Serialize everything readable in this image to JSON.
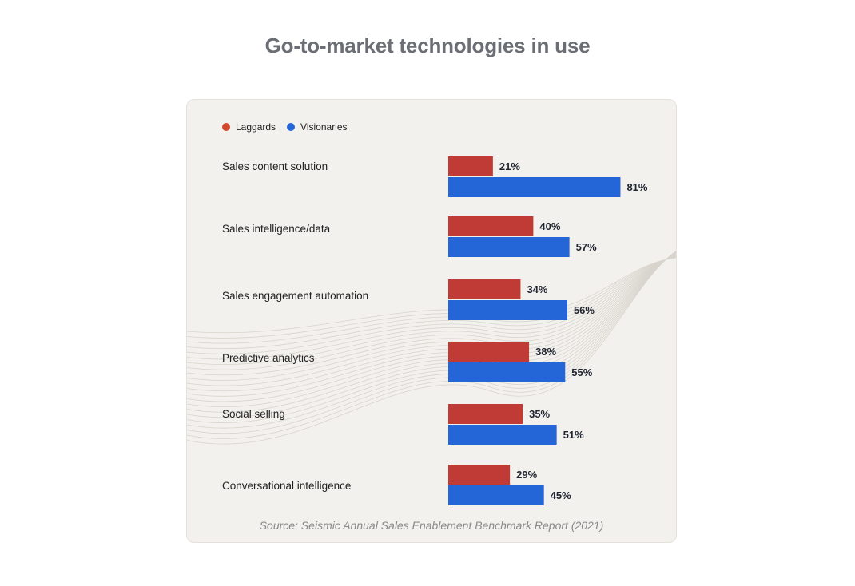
{
  "title": "Go-to-market technologies in use",
  "source": "Source: Seismic Annual Sales Enablement Benchmark Report (2021)",
  "colors": {
    "laggards": "#c03a36",
    "visionaries": "#2466d8",
    "card": "#f3f1ed",
    "title": "#6b6e74"
  },
  "chart_data": {
    "type": "bar",
    "orientation": "horizontal",
    "title": "Go-to-market technologies in use",
    "categories": [
      "Sales content solution",
      "Sales intelligence/data",
      "Sales engagement automation",
      "Predictive analytics",
      "Social selling",
      "Conversational intelligence"
    ],
    "series": [
      {
        "name": "Laggards",
        "color": "#c03a36",
        "values": [
          21,
          40,
          34,
          38,
          35,
          29
        ],
        "labels": [
          "21%",
          "40%",
          "34%",
          "38%",
          "35%",
          "29%"
        ]
      },
      {
        "name": "Visionaries",
        "color": "#2466d8",
        "values": [
          81,
          57,
          56,
          55,
          51,
          45
        ],
        "labels": [
          "81%",
          "57%",
          "56%",
          "55%",
          "51%",
          "45%"
        ]
      }
    ],
    "unit": "%",
    "legend": "top-left",
    "grid": false
  }
}
